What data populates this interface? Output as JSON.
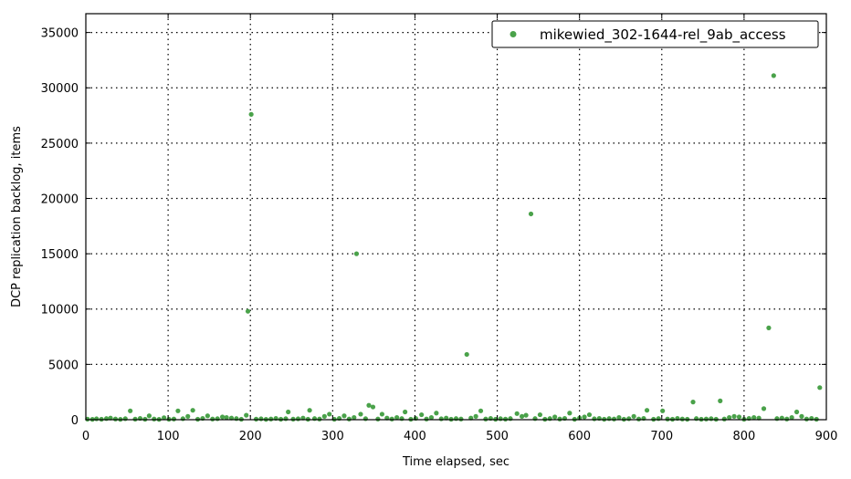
{
  "chart_data": {
    "type": "scatter",
    "xlabel": "Time elapsed, sec",
    "ylabel": "DCP replication backlog, items",
    "xlim": [
      0,
      900
    ],
    "ylim": [
      0,
      36700
    ],
    "xticks": [
      0,
      100,
      200,
      300,
      400,
      500,
      600,
      700,
      800,
      900
    ],
    "yticks": [
      0,
      5000,
      10000,
      15000,
      20000,
      25000,
      30000,
      35000
    ],
    "grid": true,
    "legend_position": "top-right",
    "series": [
      {
        "name": "mikewied_302-1644-rel_9ab_access",
        "color": "#4aa24a",
        "points": [
          [
            2,
            50
          ],
          [
            8,
            30
          ],
          [
            13,
            80
          ],
          [
            19,
            40
          ],
          [
            25,
            100
          ],
          [
            30,
            150
          ],
          [
            36,
            60
          ],
          [
            42,
            30
          ],
          [
            48,
            90
          ],
          [
            54,
            800
          ],
          [
            60,
            50
          ],
          [
            66,
            120
          ],
          [
            72,
            40
          ],
          [
            77,
            350
          ],
          [
            83,
            60
          ],
          [
            89,
            30
          ],
          [
            95,
            180
          ],
          [
            101,
            40
          ],
          [
            107,
            60
          ],
          [
            112,
            800
          ],
          [
            118,
            90
          ],
          [
            124,
            300
          ],
          [
            130,
            850
          ],
          [
            136,
            40
          ],
          [
            142,
            120
          ],
          [
            148,
            350
          ],
          [
            154,
            60
          ],
          [
            160,
            90
          ],
          [
            166,
            250
          ],
          [
            171,
            200
          ],
          [
            177,
            150
          ],
          [
            183,
            100
          ],
          [
            189,
            40
          ],
          [
            195,
            400
          ],
          [
            197,
            9800
          ],
          [
            201,
            27600
          ],
          [
            207,
            50
          ],
          [
            213,
            80
          ],
          [
            219,
            30
          ],
          [
            225,
            60
          ],
          [
            231,
            120
          ],
          [
            237,
            40
          ],
          [
            243,
            90
          ],
          [
            246,
            700
          ],
          [
            252,
            50
          ],
          [
            258,
            80
          ],
          [
            264,
            150
          ],
          [
            270,
            40
          ],
          [
            272,
            850
          ],
          [
            278,
            100
          ],
          [
            284,
            60
          ],
          [
            290,
            300
          ],
          [
            296,
            500
          ],
          [
            302,
            40
          ],
          [
            308,
            120
          ],
          [
            314,
            350
          ],
          [
            320,
            60
          ],
          [
            326,
            200
          ],
          [
            329,
            15000
          ],
          [
            334,
            500
          ],
          [
            340,
            90
          ],
          [
            344,
            1300
          ],
          [
            349,
            1150
          ],
          [
            355,
            60
          ],
          [
            360,
            500
          ],
          [
            366,
            150
          ],
          [
            372,
            60
          ],
          [
            378,
            200
          ],
          [
            384,
            100
          ],
          [
            388,
            700
          ],
          [
            395,
            40
          ],
          [
            401,
            120
          ],
          [
            408,
            450
          ],
          [
            414,
            60
          ],
          [
            420,
            200
          ],
          [
            426,
            600
          ],
          [
            432,
            80
          ],
          [
            438,
            150
          ],
          [
            444,
            40
          ],
          [
            450,
            100
          ],
          [
            456,
            60
          ],
          [
            463,
            5900
          ],
          [
            468,
            150
          ],
          [
            474,
            300
          ],
          [
            480,
            800
          ],
          [
            486,
            60
          ],
          [
            492,
            120
          ],
          [
            498,
            40
          ],
          [
            504,
            90
          ],
          [
            510,
            50
          ],
          [
            516,
            100
          ],
          [
            524,
            550
          ],
          [
            530,
            300
          ],
          [
            535,
            400
          ],
          [
            541,
            18600
          ],
          [
            546,
            100
          ],
          [
            552,
            450
          ],
          [
            558,
            40
          ],
          [
            564,
            100
          ],
          [
            570,
            250
          ],
          [
            576,
            60
          ],
          [
            582,
            120
          ],
          [
            588,
            600
          ],
          [
            594,
            40
          ],
          [
            600,
            150
          ],
          [
            606,
            250
          ],
          [
            612,
            450
          ],
          [
            618,
            80
          ],
          [
            624,
            120
          ],
          [
            630,
            40
          ],
          [
            636,
            100
          ],
          [
            642,
            60
          ],
          [
            648,
            200
          ],
          [
            654,
            40
          ],
          [
            660,
            90
          ],
          [
            666,
            300
          ],
          [
            672,
            60
          ],
          [
            678,
            120
          ],
          [
            682,
            850
          ],
          [
            690,
            40
          ],
          [
            696,
            100
          ],
          [
            701,
            800
          ],
          [
            707,
            60
          ],
          [
            713,
            40
          ],
          [
            719,
            120
          ],
          [
            725,
            60
          ],
          [
            731,
            40
          ],
          [
            738,
            1600
          ],
          [
            742,
            100
          ],
          [
            748,
            40
          ],
          [
            754,
            60
          ],
          [
            760,
            90
          ],
          [
            766,
            40
          ],
          [
            771,
            1700
          ],
          [
            776,
            60
          ],
          [
            782,
            200
          ],
          [
            788,
            300
          ],
          [
            794,
            250
          ],
          [
            800,
            40
          ],
          [
            806,
            120
          ],
          [
            812,
            200
          ],
          [
            818,
            150
          ],
          [
            824,
            1000
          ],
          [
            830,
            8300
          ],
          [
            836,
            31100
          ],
          [
            840,
            100
          ],
          [
            846,
            150
          ],
          [
            852,
            60
          ],
          [
            858,
            200
          ],
          [
            864,
            700
          ],
          [
            870,
            300
          ],
          [
            876,
            60
          ],
          [
            882,
            120
          ],
          [
            888,
            40
          ],
          [
            892,
            2900
          ]
        ]
      }
    ]
  }
}
